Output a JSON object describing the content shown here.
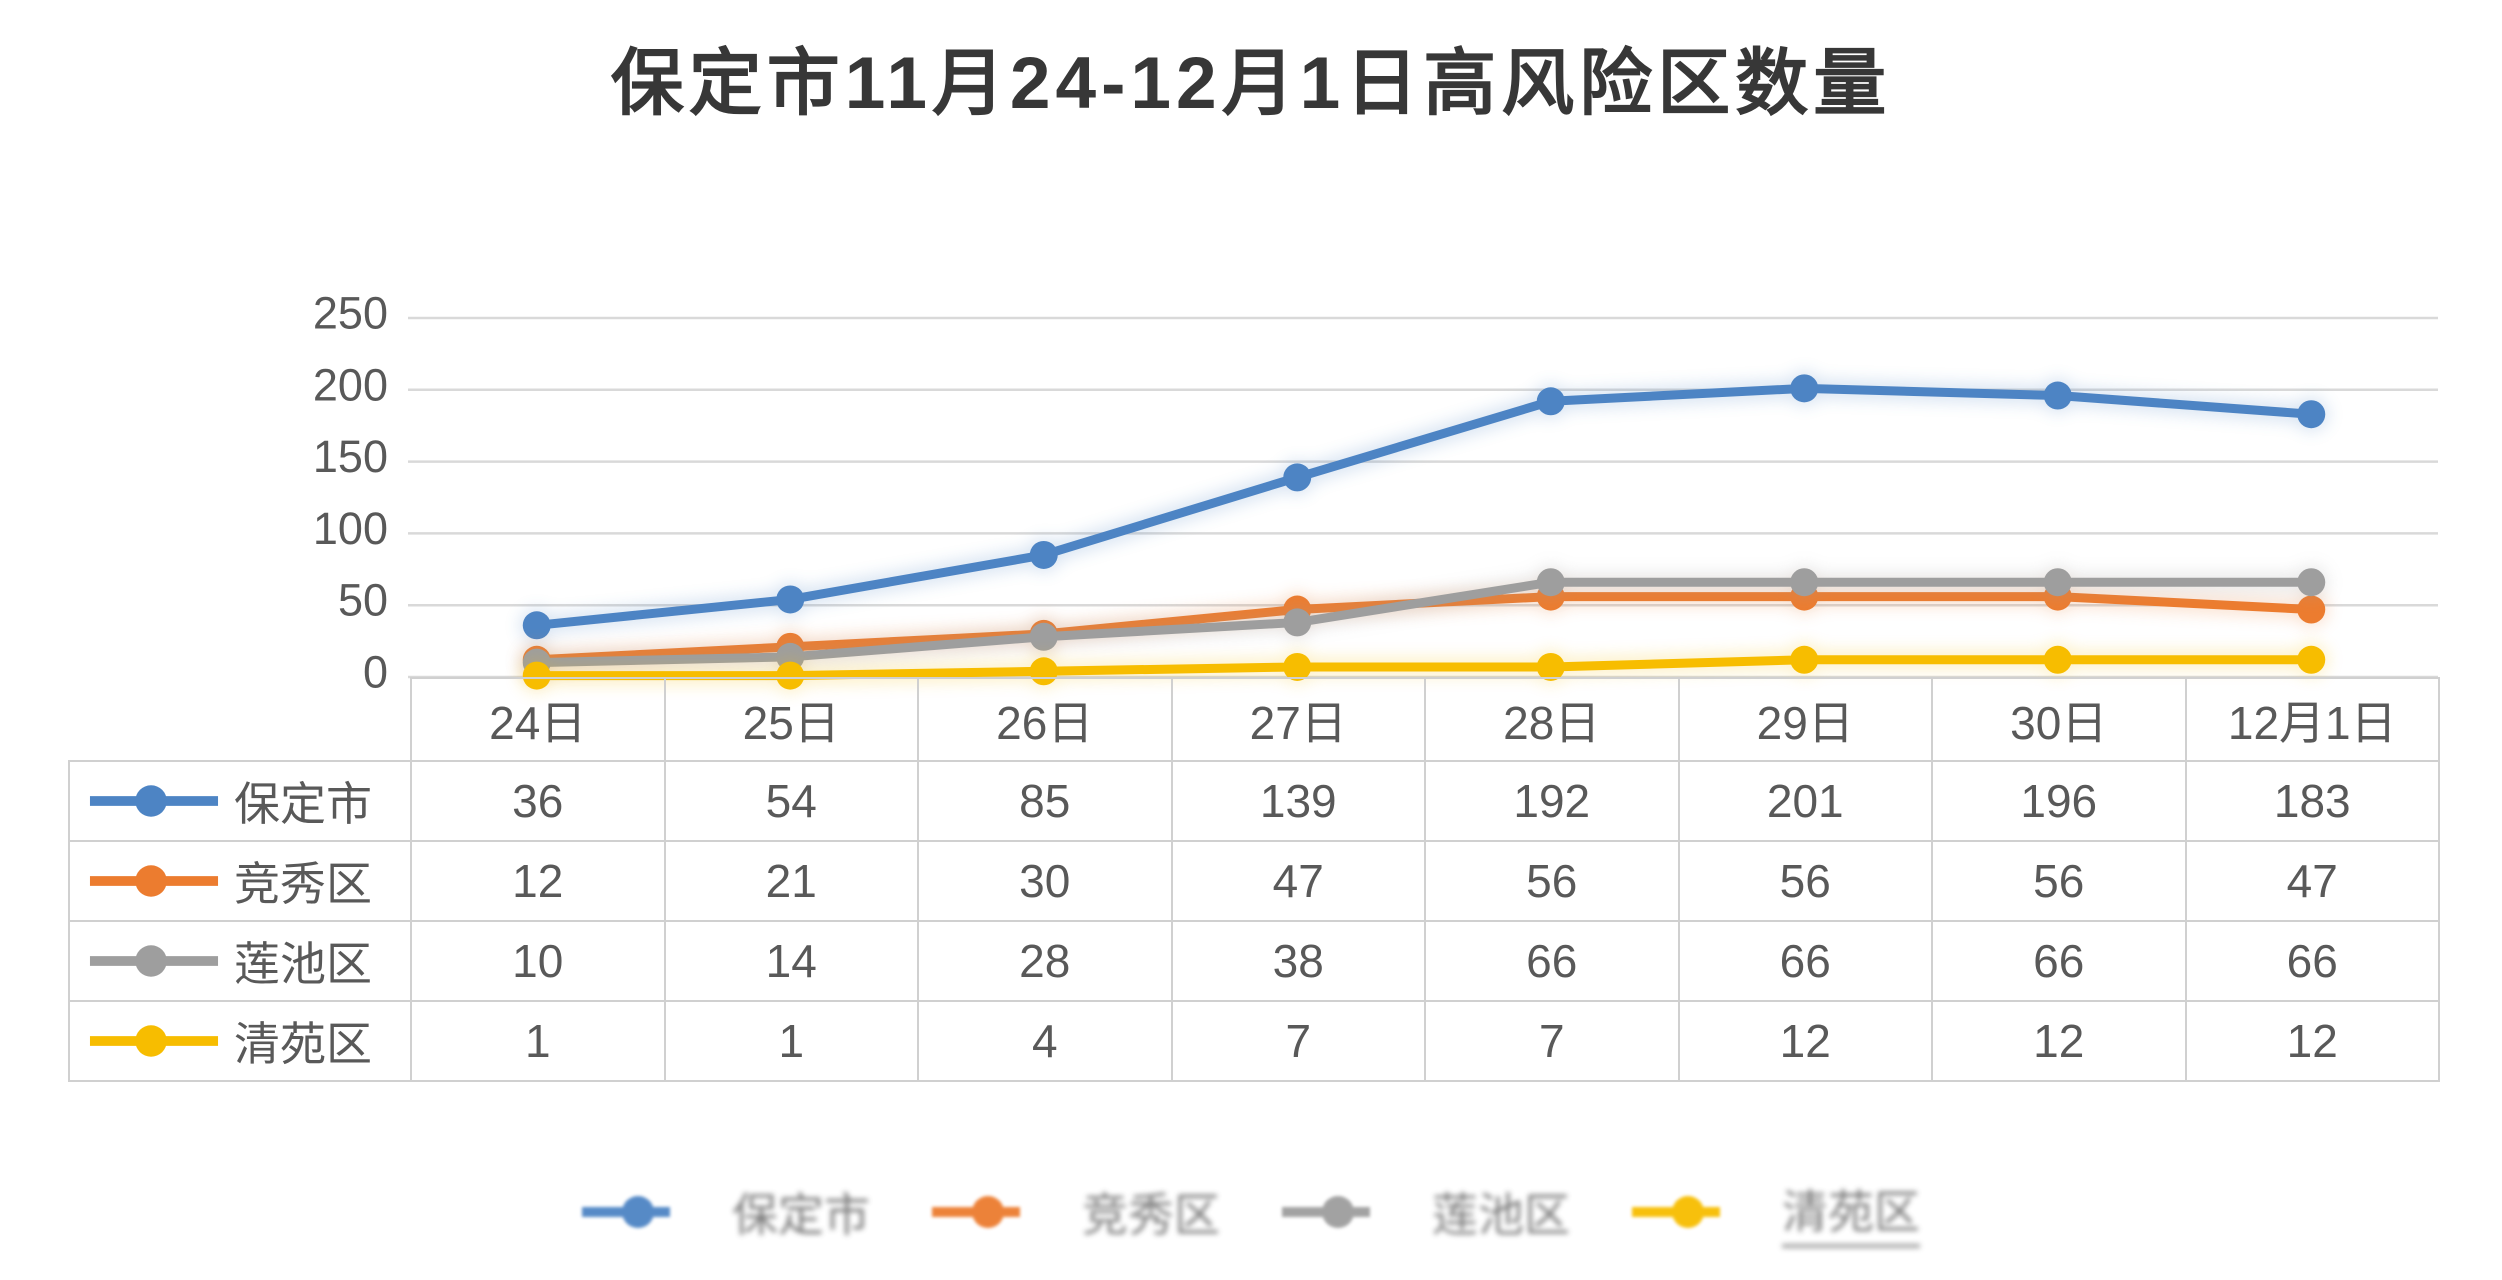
{
  "title": "保定市11月24-12月1日高风险区数量",
  "chart_data": {
    "type": "line",
    "title": "保定市11月24-12月1日高风险区数量",
    "categories": [
      "24日",
      "25日",
      "26日",
      "27日",
      "28日",
      "29日",
      "30日",
      "12月1日"
    ],
    "series": [
      {
        "name": "保定市",
        "color": "#4d84c4",
        "values": [
          36,
          54,
          85,
          139,
          192,
          201,
          196,
          183
        ]
      },
      {
        "name": "竞秀区",
        "color": "#ec7c2f",
        "values": [
          12,
          21,
          30,
          47,
          56,
          56,
          56,
          47
        ]
      },
      {
        "name": "莲池区",
        "color": "#9e9e9e",
        "values": [
          10,
          14,
          28,
          38,
          66,
          66,
          66,
          66
        ]
      },
      {
        "name": "清苑区",
        "color": "#f7bd00",
        "values": [
          1,
          1,
          4,
          7,
          7,
          12,
          12,
          12
        ]
      }
    ],
    "yticks": [
      0,
      50,
      100,
      150,
      200,
      250
    ],
    "ylim": [
      0,
      250
    ],
    "xlabel": "",
    "ylabel": "",
    "grid": true,
    "marker": "circle",
    "data_table_shown": true,
    "legend_position": "bottom"
  },
  "legend": {
    "items": [
      "保定市",
      "竞秀区",
      "莲池区",
      "清苑区"
    ]
  },
  "style": {
    "background": "#ffffff",
    "grid_color": "#d9d9d9",
    "axis_text_color": "#595959",
    "table_border_color": "#d0d0d0",
    "title_color": "#373737"
  }
}
